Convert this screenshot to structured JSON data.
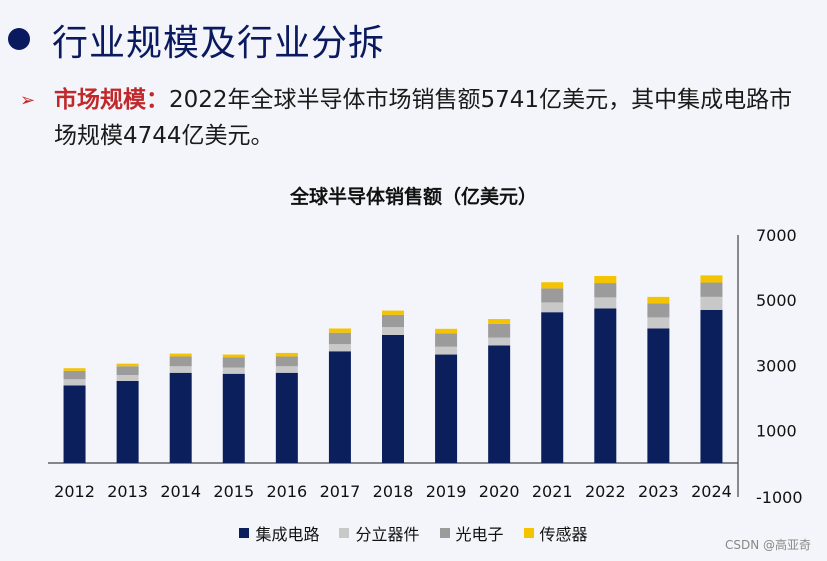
{
  "header": {
    "title": "行业规模及行业分拆"
  },
  "description": {
    "arrow": "➢",
    "lead": "市场规模：",
    "text": "2022年全球半导体市场销售额5741亿美元，其中集成电路市场规模4744亿美元。"
  },
  "chart_data": {
    "type": "bar",
    "stacked": true,
    "title": "全球半导体销售额（亿美元）",
    "categories": [
      "2012",
      "2013",
      "2014",
      "2015",
      "2016",
      "2017",
      "2018",
      "2019",
      "2020",
      "2021",
      "2022",
      "2023",
      "2024"
    ],
    "series": [
      {
        "name": "集成电路",
        "color": "#0b1f5c",
        "values": [
          2380,
          2520,
          2770,
          2740,
          2770,
          3430,
          3930,
          3330,
          3610,
          4630,
          4744,
          4130,
          4700
        ]
      },
      {
        "name": "分立器件",
        "color": "#c8c8c8",
        "values": [
          190,
          180,
          200,
          190,
          200,
          220,
          240,
          240,
          240,
          300,
          340,
          340,
          400
        ]
      },
      {
        "name": "光电子",
        "color": "#9b9b9b",
        "values": [
          260,
          270,
          300,
          310,
          300,
          350,
          380,
          410,
          420,
          430,
          440,
          430,
          440
        ]
      },
      {
        "name": "传感器",
        "color": "#f5c400",
        "values": [
          80,
          80,
          90,
          90,
          110,
          130,
          130,
          140,
          150,
          190,
          217,
          200,
          220
        ]
      }
    ],
    "y_ticks": [
      "7000",
      "5000",
      "3000",
      "1000",
      "-1000"
    ],
    "ylim": [
      -1000,
      7000
    ],
    "y_axis_side": "right",
    "grid": false,
    "legend_position": "bottom"
  },
  "watermark": "CSDN @高亚奇"
}
